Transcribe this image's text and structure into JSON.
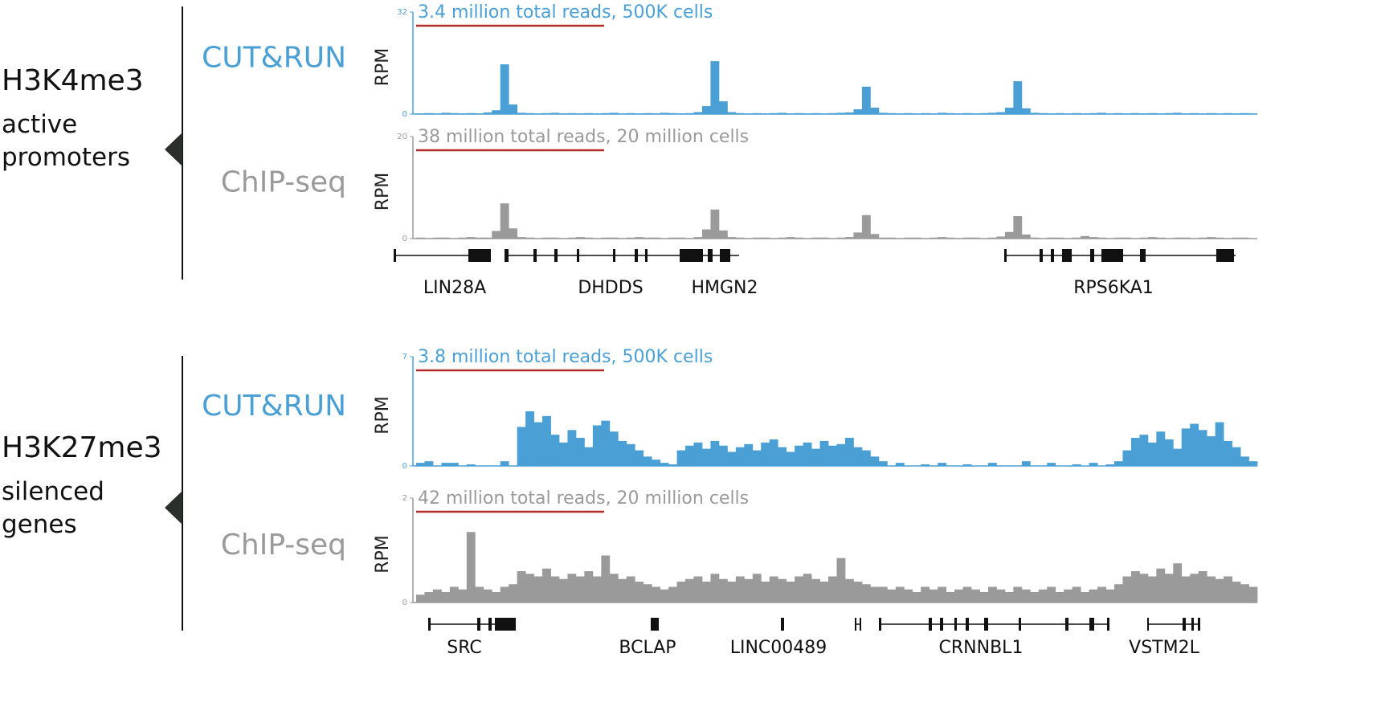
{
  "panels": [
    {
      "mark": "H3K4me3",
      "description": "active promoters"
    },
    {
      "mark": "H3K27me3",
      "description": "silenced genes"
    }
  ],
  "chart_data": [
    {
      "type": "bar",
      "method": "CUT&RUN",
      "annotation": "3.4 million total reads, 500K cells",
      "ylabel": "RPM",
      "color": "#4a9fd5",
      "ylim": [
        0,
        32
      ],
      "yticks": [
        0,
        32
      ],
      "values": [
        0.2,
        0.3,
        0.2,
        0.4,
        0.3,
        0.2,
        0.3,
        0.2,
        0.5,
        1.2,
        15.6,
        3.0,
        0.4,
        0.3,
        0.2,
        0.3,
        0.4,
        0.2,
        0.3,
        0.2,
        0.3,
        0.2,
        0.3,
        0.4,
        0.2,
        0.3,
        0.2,
        0.3,
        0.2,
        0.4,
        0.3,
        0.2,
        0.3,
        0.6,
        2.5,
        16.6,
        4.0,
        0.6,
        0.3,
        0.2,
        0.3,
        0.2,
        0.3,
        0.4,
        0.2,
        0.3,
        0.2,
        0.3,
        0.2,
        0.3,
        0.4,
        0.5,
        1.5,
        8.6,
        2.0,
        0.4,
        0.3,
        0.2,
        0.3,
        0.2,
        0.3,
        0.2,
        0.4,
        0.3,
        0.2,
        0.3,
        0.2,
        0.3,
        0.4,
        0.6,
        2.0,
        10.3,
        1.8,
        0.4,
        0.3,
        0.2,
        0.3,
        0.2,
        0.3,
        0.2,
        0.3,
        0.4,
        0.2,
        0.3,
        0.2,
        0.3,
        0.2,
        0.3,
        0.2,
        0.3,
        0.4,
        0.2,
        0.3,
        0.2,
        0.3,
        0.2,
        0.3,
        0.2,
        0.3,
        0.2
      ]
    },
    {
      "type": "bar",
      "method": "ChIP-seq",
      "annotation": "38 million total reads, 20 million cells",
      "ylabel": "RPM",
      "color": "#9a9a9a",
      "ylim": [
        0,
        20
      ],
      "yticks": [
        0,
        20
      ],
      "values": [
        0.2,
        0.1,
        0.2,
        0.2,
        0.1,
        0.2,
        0.3,
        0.2,
        0.2,
        1.5,
        6.9,
        2.0,
        0.3,
        0.2,
        0.1,
        0.2,
        0.2,
        0.1,
        0.2,
        0.3,
        0.2,
        0.1,
        0.2,
        0.2,
        0.1,
        0.2,
        0.3,
        0.2,
        0.2,
        0.1,
        0.2,
        0.2,
        0.1,
        0.3,
        1.8,
        5.7,
        1.6,
        0.3,
        0.2,
        0.1,
        0.2,
        0.2,
        0.1,
        0.2,
        0.3,
        0.2,
        0.1,
        0.2,
        0.2,
        0.1,
        0.2,
        0.3,
        1.2,
        4.6,
        0.9,
        0.2,
        0.2,
        0.1,
        0.2,
        0.2,
        0.1,
        0.2,
        0.3,
        0.2,
        0.1,
        0.2,
        0.2,
        0.1,
        0.2,
        0.4,
        1.3,
        4.4,
        0.8,
        0.2,
        0.1,
        0.2,
        0.2,
        0.1,
        0.2,
        0.5,
        0.3,
        0.2,
        0.1,
        0.2,
        0.2,
        0.1,
        0.2,
        0.3,
        0.2,
        0.1,
        0.2,
        0.2,
        0.1,
        0.2,
        0.3,
        0.2,
        0.1,
        0.2,
        0.2,
        0.1
      ]
    },
    {
      "type": "bar",
      "method": "CUT&RUN",
      "annotation": "3.8 million total reads, 500K cells",
      "ylabel": "RPM",
      "color": "#4a9fd5",
      "ylim": [
        0,
        7
      ],
      "yticks": [
        0,
        7
      ],
      "values": [
        0.2,
        0.3,
        0,
        0.2,
        0.2,
        0,
        0.1,
        0,
        0,
        0,
        0.3,
        0,
        2.5,
        3.5,
        2.8,
        3.2,
        2.0,
        1.5,
        2.3,
        1.8,
        1.2,
        2.6,
        2.9,
        2.2,
        1.6,
        1.4,
        1.0,
        0.6,
        0.4,
        0.2,
        0.1,
        1.0,
        1.3,
        1.5,
        1.1,
        1.6,
        1.3,
        0.9,
        1.2,
        1.4,
        1.0,
        1.5,
        1.7,
        1.2,
        0.9,
        1.3,
        1.5,
        1.1,
        1.6,
        1.3,
        1.4,
        1.8,
        1.2,
        1.0,
        0.6,
        0.3,
        0,
        0.2,
        0,
        0,
        0.1,
        0,
        0.2,
        0,
        0,
        0.1,
        0,
        0,
        0.2,
        0,
        0,
        0,
        0.3,
        0,
        0,
        0.2,
        0,
        0,
        0.1,
        0,
        0.2,
        0,
        0.1,
        0.3,
        1.0,
        1.8,
        2.0,
        1.5,
        2.2,
        1.7,
        1.1,
        2.4,
        2.7,
        2.3,
        1.9,
        2.8,
        1.6,
        1.2,
        0.6,
        0.3
      ]
    },
    {
      "type": "bar",
      "method": "ChIP-seq",
      "annotation": "42 million total reads, 20 million cells",
      "ylabel": "RPM",
      "color": "#9a9a9a",
      "ylim": [
        0,
        2
      ],
      "yticks": [
        0,
        2
      ],
      "values": [
        0.15,
        0.2,
        0.25,
        0.2,
        0.3,
        0.25,
        1.35,
        0.3,
        0.25,
        0.2,
        0.3,
        0.35,
        0.6,
        0.55,
        0.5,
        0.65,
        0.5,
        0.45,
        0.55,
        0.5,
        0.6,
        0.5,
        0.9,
        0.55,
        0.45,
        0.5,
        0.4,
        0.35,
        0.3,
        0.25,
        0.3,
        0.4,
        0.45,
        0.5,
        0.4,
        0.55,
        0.45,
        0.4,
        0.5,
        0.45,
        0.55,
        0.4,
        0.5,
        0.45,
        0.4,
        0.5,
        0.55,
        0.45,
        0.4,
        0.5,
        0.85,
        0.45,
        0.4,
        0.35,
        0.3,
        0.3,
        0.25,
        0.3,
        0.25,
        0.2,
        0.3,
        0.25,
        0.3,
        0.2,
        0.25,
        0.3,
        0.25,
        0.2,
        0.3,
        0.25,
        0.2,
        0.3,
        0.25,
        0.2,
        0.25,
        0.3,
        0.2,
        0.25,
        0.3,
        0.2,
        0.25,
        0.3,
        0.25,
        0.35,
        0.5,
        0.6,
        0.55,
        0.5,
        0.65,
        0.55,
        0.75,
        0.5,
        0.55,
        0.6,
        0.5,
        0.45,
        0.5,
        0.4,
        0.35,
        0.3
      ]
    }
  ],
  "genes": [
    [
      "LIN28A",
      "DHDDS",
      "HMGN2",
      "RPS6KA1"
    ],
    [
      "SRC",
      "BCLAP",
      "LINC00489",
      "CRNNBL1",
      "VSTM2L"
    ]
  ]
}
